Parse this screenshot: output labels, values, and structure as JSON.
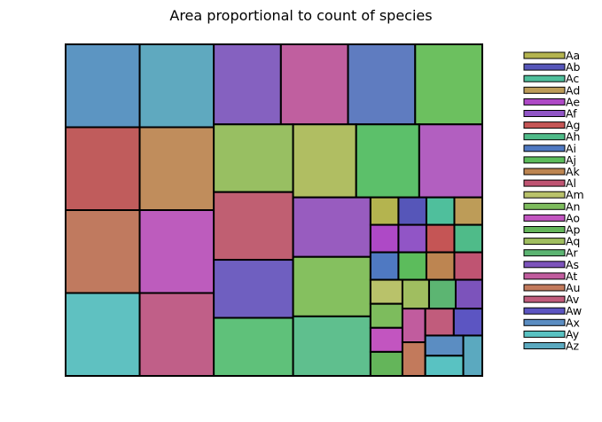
{
  "chart_data": {
    "type": "treemap",
    "title": "Area proportional to count of species",
    "axes": "none",
    "legend_position": "right",
    "cells": [
      {
        "label": "Aa",
        "value": 1,
        "color": "#b4b44f"
      },
      {
        "label": "Ab",
        "value": 1,
        "color": "#5656b9"
      },
      {
        "label": "Ac",
        "value": 1,
        "color": "#4fbf9c"
      },
      {
        "label": "Ad",
        "value": 1,
        "color": "#bd9c58"
      },
      {
        "label": "Ae",
        "value": 1,
        "color": "#ae49c6"
      },
      {
        "label": "Af",
        "value": 1,
        "color": "#9155c6"
      },
      {
        "label": "Ag",
        "value": 1,
        "color": "#c55555"
      },
      {
        "label": "Ah",
        "value": 1,
        "color": "#4fbb89"
      },
      {
        "label": "Ai",
        "value": 1,
        "color": "#4f79c2"
      },
      {
        "label": "Aj",
        "value": 1,
        "color": "#5cbc5c"
      },
      {
        "label": "Ak",
        "value": 1,
        "color": "#bd8551"
      },
      {
        "label": "Al",
        "value": 1,
        "color": "#bf5472"
      },
      {
        "label": "Am",
        "value": 1,
        "color": "#b9c26a"
      },
      {
        "label": "An",
        "value": 1,
        "color": "#7dbc5d"
      },
      {
        "label": "Ao",
        "value": 1,
        "color": "#c255c0"
      },
      {
        "label": "Ap",
        "value": 1,
        "color": "#64b55a"
      },
      {
        "label": "Aq",
        "value": 1,
        "color": "#a0be60"
      },
      {
        "label": "Ar",
        "value": 1,
        "color": "#5cb572"
      },
      {
        "label": "As",
        "value": 1,
        "color": "#7c53bb"
      },
      {
        "label": "At",
        "value": 1,
        "color": "#c15c9e"
      },
      {
        "label": "Au",
        "value": 1,
        "color": "#c27a5c"
      },
      {
        "label": "Av",
        "value": 1,
        "color": "#c15c7c"
      },
      {
        "label": "Aw",
        "value": 1,
        "color": "#5c55c2"
      },
      {
        "label": "Ax",
        "value": 1,
        "color": "#5b8dc2"
      },
      {
        "label": "Ay",
        "value": 1,
        "color": "#59c2c2"
      },
      {
        "label": "Az",
        "value": 1,
        "color": "#5ba9bf"
      },
      {
        "label": "",
        "value": 8,
        "color": "#5c95c2"
      },
      {
        "label": "",
        "value": 8,
        "color": "#c05c5c"
      },
      {
        "label": "",
        "value": 8,
        "color": "#c07a5f"
      },
      {
        "label": "",
        "value": 8,
        "color": "#5fc1c1"
      },
      {
        "label": "",
        "value": 8,
        "color": "#5fa9bf"
      },
      {
        "label": "",
        "value": 8,
        "color": "#c08d5c"
      },
      {
        "label": "",
        "value": 8,
        "color": "#bd5cbd"
      },
      {
        "label": "",
        "value": 8,
        "color": "#c05f88"
      },
      {
        "label": "",
        "value": 7,
        "color": "#8561c0"
      },
      {
        "label": "",
        "value": 7,
        "color": "#c05f9f"
      },
      {
        "label": "",
        "value": 7,
        "color": "#5f7cc0"
      },
      {
        "label": "",
        "value": 7,
        "color": "#6cc05f"
      },
      {
        "label": "",
        "value": 7,
        "color": "#98bf62"
      },
      {
        "label": "",
        "value": 7,
        "color": "#c05f72"
      },
      {
        "label": "",
        "value": 6,
        "color": "#6f5fc0"
      },
      {
        "label": "",
        "value": 6,
        "color": "#5fc17a"
      },
      {
        "label": "",
        "value": 6,
        "color": "#b0be62"
      },
      {
        "label": "",
        "value": 6,
        "color": "#5cc06a"
      },
      {
        "label": "",
        "value": 6,
        "color": "#b25fc0"
      },
      {
        "label": "",
        "value": 6,
        "color": "#985cbf"
      },
      {
        "label": "",
        "value": 6,
        "color": "#85c05f"
      },
      {
        "label": "",
        "value": 6,
        "color": "#5fbf8e"
      }
    ]
  }
}
